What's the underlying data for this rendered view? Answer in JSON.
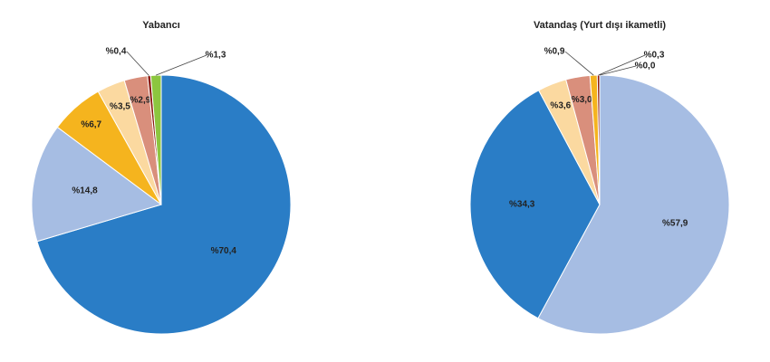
{
  "chart_data": [
    {
      "type": "pie",
      "title": "Yabancı",
      "values": [
        70.4,
        14.8,
        6.7,
        3.5,
        2.9,
        0.4,
        1.3
      ],
      "value_labels": [
        "%70,4",
        "%14,8",
        "%6,7",
        "%3,5",
        "%2,9",
        "%0,4",
        "%1,3"
      ],
      "colors": [
        "#2a7dc6",
        "#a6bde3",
        "#f5b41e",
        "#fbd9a0",
        "#d98f7c",
        "#8b1a10",
        "#8cc63f"
      ]
    },
    {
      "type": "pie",
      "title": "Vatandaş (Yurt dışı ikametli)",
      "values": [
        57.9,
        34.3,
        3.6,
        3.0,
        0.9,
        0.3,
        0.0
      ],
      "value_labels": [
        "%57,9",
        "%34,3",
        "%3,6",
        "%3,0",
        "%0,9",
        "%0,3",
        "%0,0"
      ],
      "colors": [
        "#a6bde3",
        "#2a7dc6",
        "#fbd9a0",
        "#d98f7c",
        "#f5b41e",
        "#8b1a10",
        "#8cc63f"
      ]
    }
  ]
}
